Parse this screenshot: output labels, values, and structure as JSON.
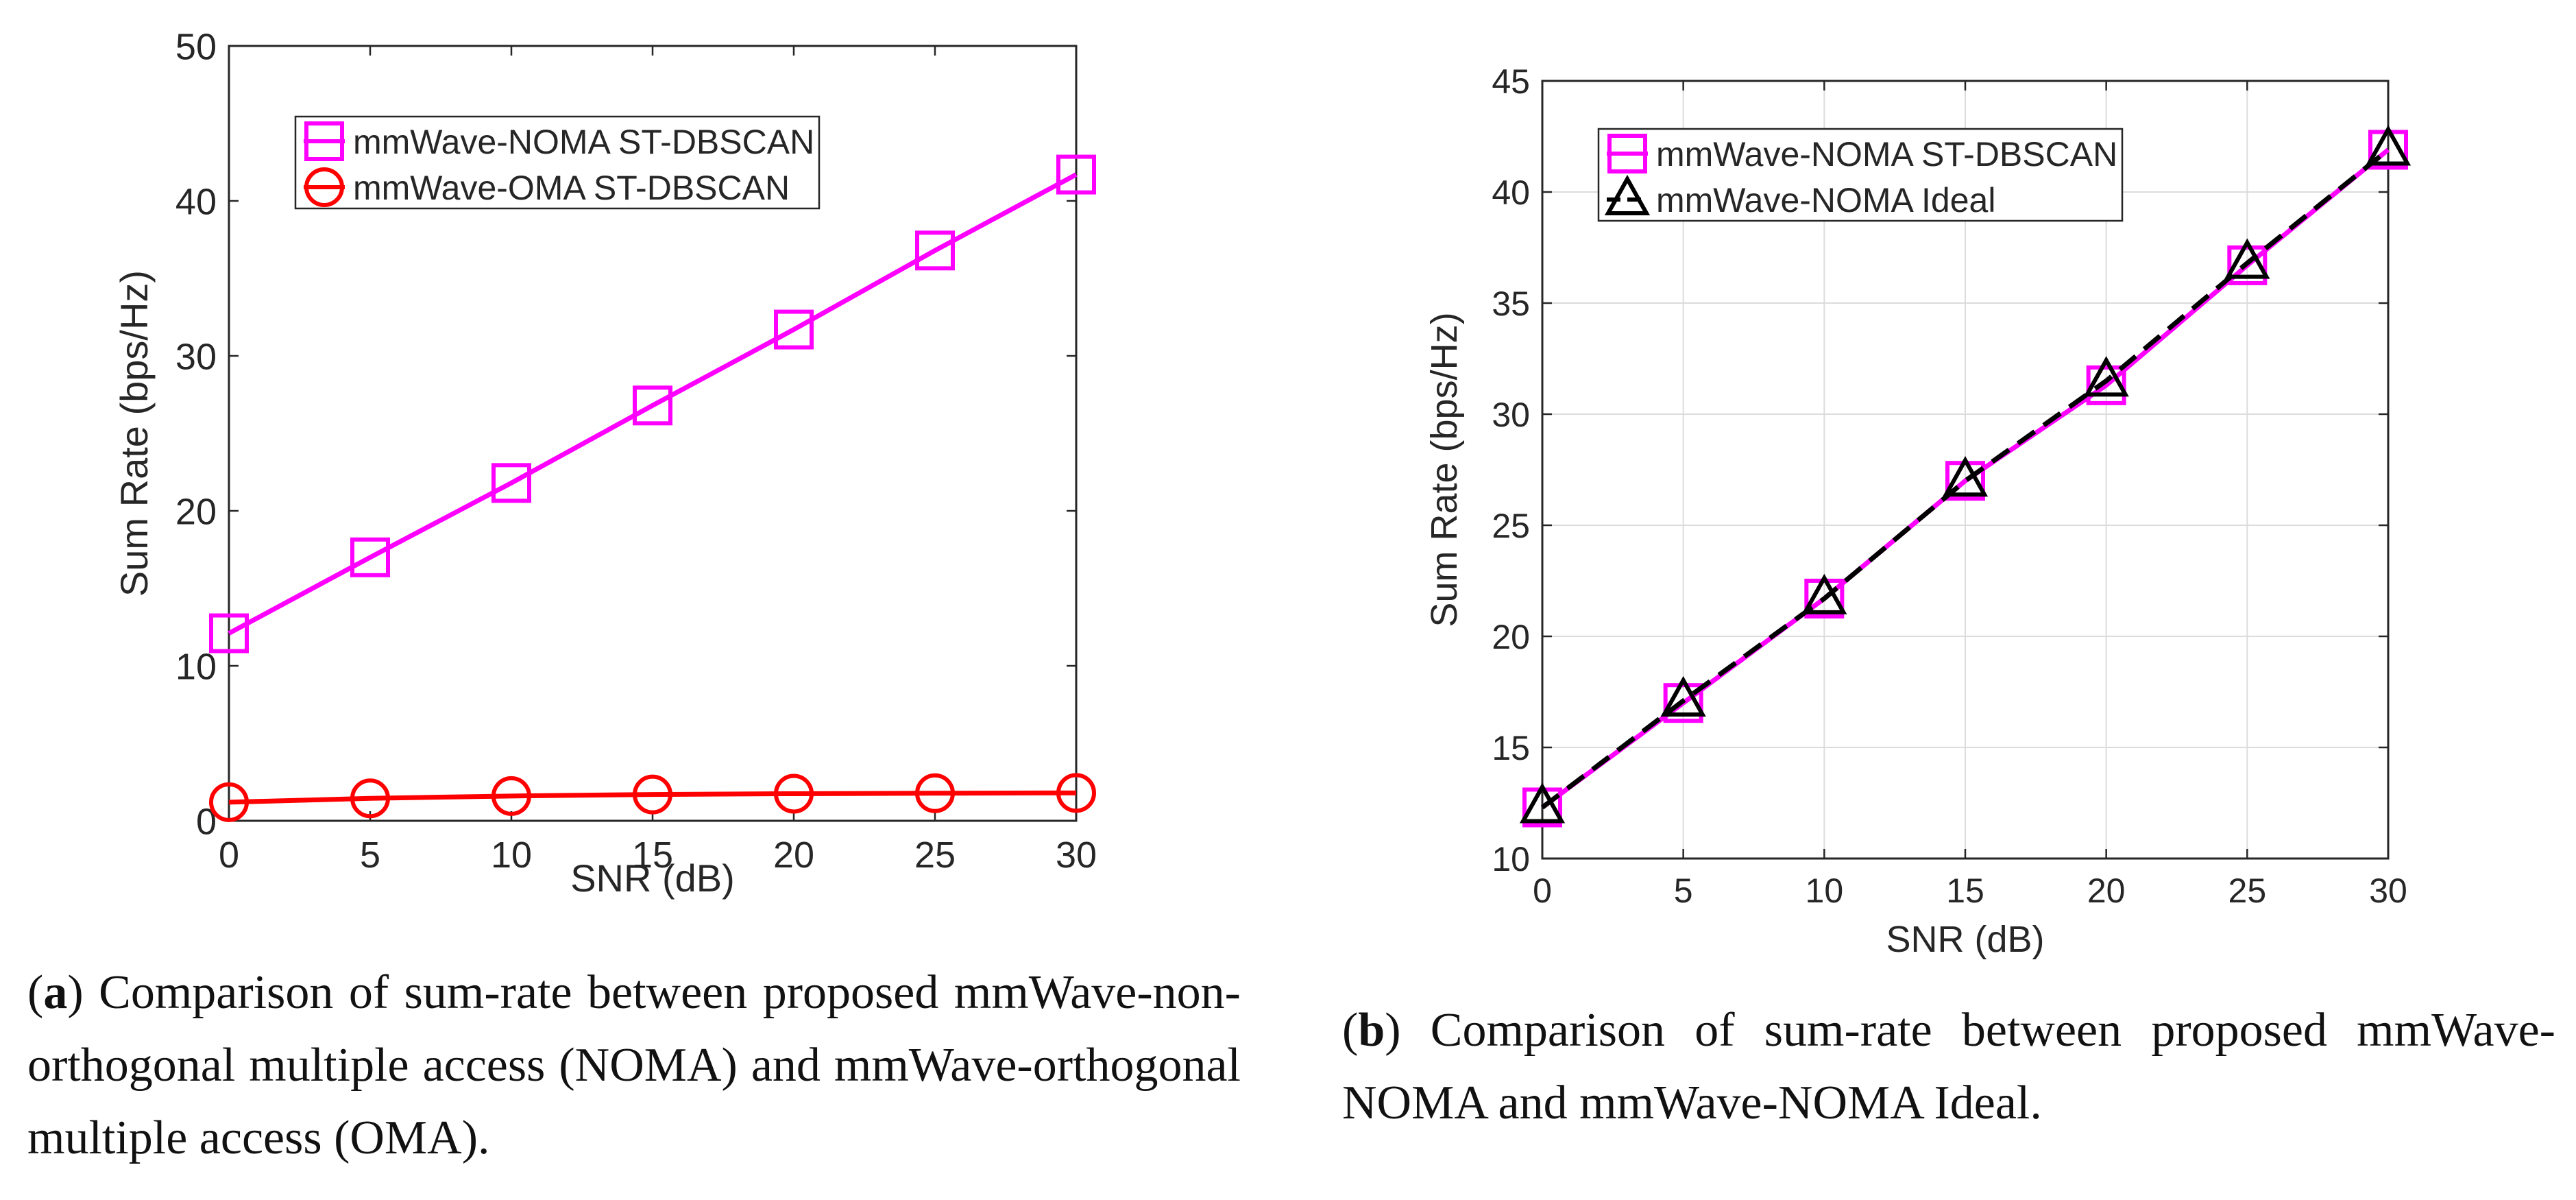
{
  "colors": {
    "noma": "#ff00ff",
    "oma": "#ff0000",
    "ideal": "#000000",
    "axis": "#262626",
    "grid": "#dcdcdc"
  },
  "chart_data": [
    {
      "id": "a",
      "type": "line",
      "title": "",
      "xlabel": "SNR (dB)",
      "ylabel": "Sum Rate (bps/Hz)",
      "xlim": [
        0,
        30
      ],
      "ylim": [
        0,
        50
      ],
      "xticks": [
        0,
        5,
        10,
        15,
        20,
        25,
        30
      ],
      "yticks": [
        0,
        10,
        20,
        30,
        40,
        50
      ],
      "grid": false,
      "legend_position": "top-center",
      "x": [
        0,
        5,
        10,
        15,
        20,
        25,
        30
      ],
      "series": [
        {
          "name": "mmWave-NOMA ST-DBSCAN",
          "color": "#ff00ff",
          "marker": "square",
          "dash": "solid",
          "values": [
            12.1,
            17.0,
            21.8,
            26.8,
            31.7,
            36.8,
            41.7
          ]
        },
        {
          "name": "mmWave-OMA ST-DBSCAN",
          "color": "#ff0000",
          "marker": "circle",
          "dash": "solid",
          "values": [
            1.2,
            1.45,
            1.6,
            1.7,
            1.75,
            1.78,
            1.8
          ]
        }
      ]
    },
    {
      "id": "b",
      "type": "line",
      "title": "",
      "xlabel": "SNR (dB)",
      "ylabel": "Sum Rate (bps/Hz)",
      "xlim": [
        0,
        30
      ],
      "ylim": [
        10,
        45
      ],
      "xticks": [
        0,
        5,
        10,
        15,
        20,
        25,
        30
      ],
      "yticks": [
        10,
        15,
        20,
        25,
        30,
        35,
        40,
        45
      ],
      "grid": true,
      "legend_position": "top-left",
      "x": [
        0,
        5,
        10,
        15,
        20,
        25,
        30
      ],
      "series": [
        {
          "name": "mmWave-NOMA ST-DBSCAN",
          "color": "#ff00ff",
          "marker": "square",
          "dash": "solid",
          "values": [
            12.3,
            17.0,
            21.7,
            27.0,
            31.3,
            36.7,
            41.9
          ]
        },
        {
          "name": "mmWave-NOMA Ideal",
          "color": "#000000",
          "marker": "triangle",
          "dash": "dashed",
          "values": [
            12.3,
            17.1,
            21.7,
            27.0,
            31.5,
            36.8,
            41.9
          ]
        }
      ]
    }
  ],
  "captions": {
    "a": {
      "label": "a",
      "text": "Comparison of sum-rate between proposed mmWave-non-orthogonal multiple access (NOMA) and mmWave-orthogonal multiple access (OMA)."
    },
    "b": {
      "label": "b",
      "text": "Comparison of sum-rate between proposed mmWave-NOMA and mmWave-NOMA Ideal."
    }
  }
}
